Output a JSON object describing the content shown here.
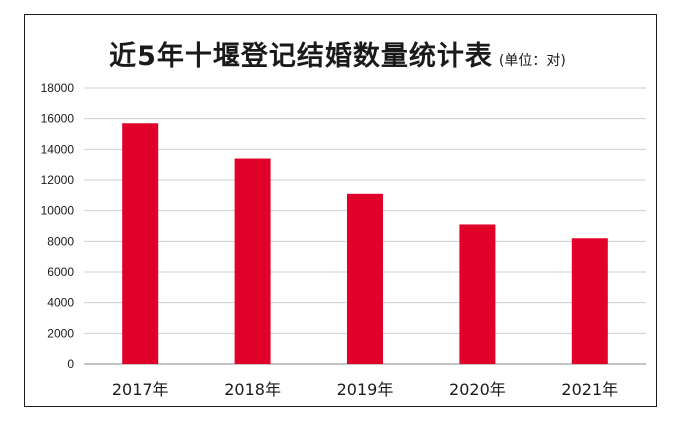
{
  "chart_data": {
    "type": "bar",
    "title": "近5年十堰登记结婚数量统计表",
    "subtitle": "(单位：对)",
    "categories": [
      "2017年",
      "2018年",
      "2019年",
      "2020年",
      "2021年"
    ],
    "values": [
      15700,
      13400,
      11100,
      9100,
      8200
    ],
    "ylim": [
      0,
      18000
    ],
    "yticks": [
      0,
      2000,
      4000,
      6000,
      8000,
      10000,
      12000,
      14000,
      16000,
      18000
    ],
    "xlabel": "",
    "ylabel": "",
    "grid": true,
    "bar_color": "#e0002a",
    "grid_color": "#cfcfcf"
  }
}
